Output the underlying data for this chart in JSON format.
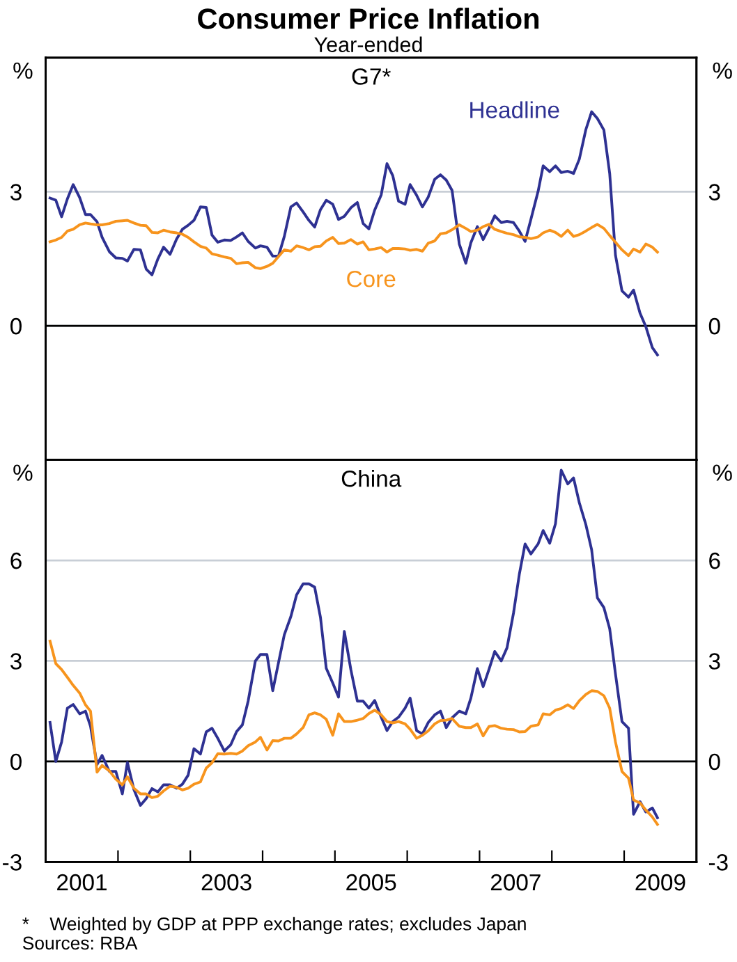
{
  "chart_data": [
    {
      "type": "line",
      "title": "Consumer Price Inflation",
      "subtitle": "Year-ended",
      "annotations": [
        "G7*"
      ],
      "ylabel": "%",
      "y2label": "%",
      "xlim": [
        2001,
        2010
      ],
      "ylim": [
        -3,
        6
      ],
      "yticks": [
        0,
        3
      ],
      "y2lim": [
        -3,
        6
      ],
      "y2ticks": [
        0,
        3
      ],
      "tick_labels": "y",
      "grid": "y",
      "legend": false,
      "ref_lines": [
        {
          "axis": "y",
          "value": 0,
          "color": "#000000"
        }
      ],
      "x": [
        2001.06,
        2001.14,
        2001.22,
        2001.3,
        2001.38,
        2001.47,
        2001.55,
        2001.62,
        2001.71,
        2001.78,
        2001.88,
        2001.97,
        2002.06,
        2002.13,
        2002.22,
        2002.31,
        2002.39,
        2002.47,
        2002.55,
        2002.63,
        2002.72,
        2002.81,
        2002.89,
        2002.97,
        2003.05,
        2003.14,
        2003.22,
        2003.3,
        2003.38,
        2003.47,
        2003.56,
        2003.64,
        2003.72,
        2003.8,
        2003.9,
        2003.97,
        2004.06,
        2004.14,
        2004.22,
        2004.3,
        2004.39,
        2004.47,
        2004.56,
        2004.64,
        2004.72,
        2004.8,
        2004.88,
        2004.97,
        2005.05,
        2005.13,
        2005.22,
        2005.31,
        2005.39,
        2005.47,
        2005.55,
        2005.64,
        2005.72,
        2005.8,
        2005.88,
        2005.97,
        2006.04,
        2006.13,
        2006.21,
        2006.29,
        2006.38,
        2006.46,
        2006.54,
        2006.62,
        2006.72,
        2006.81,
        2006.88,
        2006.97,
        2007.05,
        2007.13,
        2007.21,
        2007.3,
        2007.38,
        2007.47,
        2007.55,
        2007.63,
        2007.71,
        2007.81,
        2007.88,
        2007.97,
        2008.05,
        2008.13,
        2008.22,
        2008.3,
        2008.38,
        2008.47,
        2008.55,
        2008.63,
        2008.72,
        2008.8,
        2008.88,
        2008.97,
        2009.06,
        2009.13,
        2009.22,
        2009.3,
        2009.39,
        2009.46
      ],
      "series": [
        {
          "name": "Headline",
          "color": "#2e3192",
          "values": [
            2.86,
            2.81,
            2.44,
            2.84,
            3.16,
            2.87,
            2.49,
            2.49,
            2.33,
            1.98,
            1.66,
            1.52,
            1.51,
            1.45,
            1.71,
            1.7,
            1.27,
            1.14,
            1.49,
            1.76,
            1.6,
            1.94,
            2.16,
            2.25,
            2.36,
            2.66,
            2.65,
            2.03,
            1.87,
            1.92,
            1.91,
            1.99,
            2.08,
            1.89,
            1.74,
            1.79,
            1.76,
            1.56,
            1.56,
            2.0,
            2.66,
            2.75,
            2.55,
            2.36,
            2.21,
            2.6,
            2.81,
            2.72,
            2.38,
            2.45,
            2.64,
            2.76,
            2.29,
            2.17,
            2.59,
            2.93,
            3.63,
            3.36,
            2.79,
            2.72,
            3.16,
            2.92,
            2.66,
            2.88,
            3.28,
            3.38,
            3.26,
            3.03,
            1.83,
            1.4,
            1.86,
            2.22,
            1.93,
            2.18,
            2.46,
            2.31,
            2.34,
            2.31,
            2.12,
            1.89,
            2.38,
            3.01,
            3.58,
            3.45,
            3.58,
            3.43,
            3.46,
            3.41,
            3.73,
            4.39,
            4.79,
            4.64,
            4.38,
            3.41,
            1.58,
            0.78,
            0.64,
            0.8,
            0.28,
            -0.02,
            -0.49,
            -0.65
          ]
        },
        {
          "name": "Core",
          "color": "#f7941d",
          "values": [
            1.88,
            1.92,
            1.98,
            2.12,
            2.16,
            2.26,
            2.3,
            2.28,
            2.26,
            2.26,
            2.29,
            2.34,
            2.35,
            2.36,
            2.3,
            2.25,
            2.24,
            2.09,
            2.08,
            2.14,
            2.1,
            2.08,
            2.05,
            1.98,
            1.88,
            1.78,
            1.74,
            1.61,
            1.58,
            1.54,
            1.51,
            1.39,
            1.41,
            1.42,
            1.3,
            1.28,
            1.33,
            1.4,
            1.55,
            1.7,
            1.67,
            1.79,
            1.75,
            1.7,
            1.77,
            1.78,
            1.9,
            1.98,
            1.84,
            1.85,
            1.93,
            1.83,
            1.88,
            1.7,
            1.72,
            1.75,
            1.65,
            1.73,
            1.73,
            1.72,
            1.69,
            1.71,
            1.67,
            1.85,
            1.9,
            2.06,
            2.08,
            2.15,
            2.26,
            2.18,
            2.11,
            2.14,
            2.22,
            2.27,
            2.16,
            2.11,
            2.07,
            2.04,
            1.99,
            1.98,
            1.95,
            1.99,
            2.08,
            2.14,
            2.09,
            2.0,
            2.14,
            2.0,
            2.04,
            2.12,
            2.2,
            2.27,
            2.18,
            2.02,
            1.87,
            1.7,
            1.57,
            1.72,
            1.65,
            1.83,
            1.76,
            1.65
          ]
        }
      ]
    },
    {
      "type": "line",
      "title": "China",
      "annotations": [
        "*    Weighted by GDP at PPP exchange rates; excludes Japan",
        "Sources: RBA"
      ],
      "ylabel": "%",
      "y2label": "%",
      "xlim": [
        2001,
        2010
      ],
      "xticks": [
        {
          "value": 2001.5,
          "label": "2001"
        },
        {
          "value": 2002,
          "label": null
        },
        {
          "value": 2003,
          "label": null
        },
        {
          "value": 2003.5,
          "label": "2003"
        },
        {
          "value": 2004,
          "label": null
        },
        {
          "value": 2005,
          "label": null
        },
        {
          "value": 2005.5,
          "label": "2005"
        },
        {
          "value": 2006,
          "label": null
        },
        {
          "value": 2007,
          "label": null
        },
        {
          "value": 2007.5,
          "label": "2007"
        },
        {
          "value": 2008,
          "label": null
        },
        {
          "value": 2009,
          "label": null
        },
        {
          "value": 2009.5,
          "label": "2009"
        }
      ],
      "ylim": [
        -3,
        9
      ],
      "yticks": [
        -3,
        0,
        3,
        6
      ],
      "y2lim": [
        -3,
        9
      ],
      "y2ticks": [
        -3,
        0,
        3,
        6
      ],
      "grid": "y",
      "legend": false,
      "ref_lines": [
        {
          "axis": "y",
          "value": 0,
          "color": "#000000"
        }
      ],
      "x": [
        2001.06,
        2001.14,
        2001.22,
        2001.3,
        2001.38,
        2001.47,
        2001.55,
        2001.62,
        2001.71,
        2001.78,
        2001.88,
        2001.97,
        2002.06,
        2002.13,
        2002.22,
        2002.31,
        2002.39,
        2002.47,
        2002.55,
        2002.63,
        2002.72,
        2002.81,
        2002.89,
        2002.97,
        2003.05,
        2003.14,
        2003.22,
        2003.3,
        2003.38,
        2003.47,
        2003.56,
        2003.64,
        2003.72,
        2003.8,
        2003.9,
        2003.97,
        2004.06,
        2004.14,
        2004.22,
        2004.3,
        2004.39,
        2004.47,
        2004.56,
        2004.64,
        2004.72,
        2004.8,
        2004.88,
        2004.97,
        2005.05,
        2005.13,
        2005.22,
        2005.31,
        2005.39,
        2005.47,
        2005.55,
        2005.64,
        2005.72,
        2005.8,
        2005.88,
        2005.97,
        2006.04,
        2006.13,
        2006.21,
        2006.29,
        2006.38,
        2006.46,
        2006.54,
        2006.62,
        2006.72,
        2006.81,
        2006.88,
        2006.97,
        2007.05,
        2007.13,
        2007.21,
        2007.3,
        2007.38,
        2007.47,
        2007.55,
        2007.63,
        2007.71,
        2007.81,
        2007.88,
        2007.97,
        2008.05,
        2008.13,
        2008.22,
        2008.3,
        2008.38,
        2008.47,
        2008.55,
        2008.63,
        2008.72,
        2008.8,
        2008.88,
        2008.97,
        2009.06,
        2009.13,
        2009.22,
        2009.3,
        2009.39,
        2009.46
      ],
      "series": [
        {
          "color": "#2e3192",
          "values": [
            1.16,
            0,
            0.58,
            1.59,
            1.7,
            1.42,
            1.5,
            1.05,
            -0.09,
            0.18,
            -0.3,
            -0.3,
            -0.97,
            -0.03,
            -0.84,
            -1.31,
            -1.11,
            -0.81,
            -0.91,
            -0.7,
            -0.7,
            -0.8,
            -0.68,
            -0.41,
            0.38,
            0.22,
            0.88,
            0.99,
            0.69,
            0.31,
            0.5,
            0.89,
            1.09,
            1.8,
            3.0,
            3.19,
            3.19,
            2.11,
            2.95,
            3.78,
            4.32,
            4.97,
            5.3,
            5.3,
            5.2,
            4.3,
            2.78,
            2.34,
            1.92,
            3.88,
            2.74,
            1.8,
            1.8,
            1.59,
            1.82,
            1.32,
            0.92,
            1.19,
            1.32,
            1.59,
            1.89,
            0.92,
            0.82,
            1.16,
            1.39,
            1.5,
            1.01,
            1.3,
            1.5,
            1.42,
            1.89,
            2.77,
            2.23,
            2.74,
            3.28,
            3.0,
            3.39,
            4.43,
            5.58,
            6.49,
            6.19,
            6.49,
            6.89,
            6.51,
            7.09,
            8.69,
            8.28,
            8.46,
            7.72,
            7.07,
            6.32,
            4.88,
            4.59,
            3.96,
            2.61,
            1.19,
            0.99,
            -1.58,
            -1.2,
            -1.51,
            -1.39,
            -1.68
          ]
        },
        {
          "color": "#f7941d",
          "values": [
            3.59,
            2.92,
            2.74,
            2.51,
            2.27,
            2.04,
            1.69,
            1.5,
            -0.32,
            -0.12,
            -0.28,
            -0.53,
            -0.7,
            -0.46,
            -0.8,
            -0.97,
            -0.97,
            -1.08,
            -1.04,
            -0.88,
            -0.74,
            -0.77,
            -0.85,
            -0.8,
            -0.68,
            -0.61,
            -0.2,
            -0.04,
            0.23,
            0.22,
            0.24,
            0.22,
            0.31,
            0.47,
            0.58,
            0.72,
            0.34,
            0.62,
            0.61,
            0.69,
            0.69,
            0.82,
            1.01,
            1.39,
            1.45,
            1.39,
            1.26,
            0.78,
            1.42,
            1.19,
            1.19,
            1.23,
            1.28,
            1.43,
            1.53,
            1.39,
            1.19,
            1.15,
            1.19,
            1.12,
            0.96,
            0.69,
            0.78,
            0.91,
            1.12,
            1.22,
            1.23,
            1.28,
            1.05,
            1.01,
            1.01,
            1.12,
            0.76,
            1.04,
            1.07,
            0.99,
            0.96,
            0.95,
            0.88,
            0.89,
            1.05,
            1.09,
            1.42,
            1.39,
            1.53,
            1.58,
            1.69,
            1.58,
            1.81,
            2.0,
            2.11,
            2.09,
            1.96,
            1.59,
            0.58,
            -0.3,
            -0.5,
            -1.15,
            -1.24,
            -1.45,
            -1.66,
            -1.88
          ]
        }
      ]
    }
  ]
}
